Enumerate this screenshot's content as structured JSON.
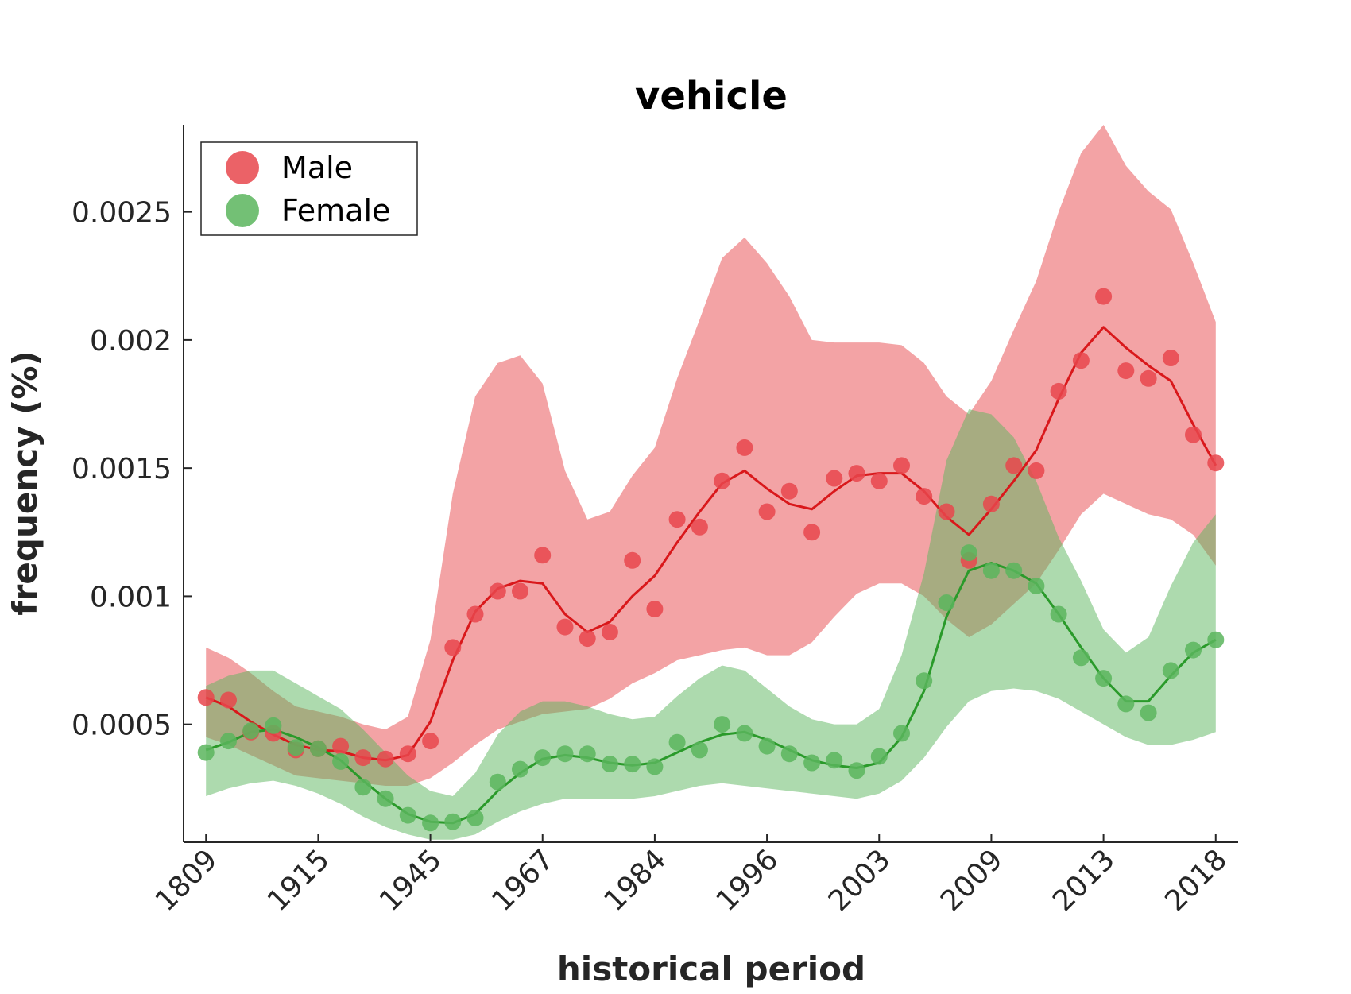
{
  "chart_data": {
    "type": "scatter",
    "title": "vehicle",
    "xlabel": "historical period",
    "ylabel": "frequency (%)",
    "x_tick_labels": [
      "1809",
      "1915",
      "1945",
      "1967",
      "1984",
      "1996",
      "2003",
      "2009",
      "2013",
      "2018"
    ],
    "y_ticks": [
      {
        "value": 0.0005,
        "label": "0.0005"
      },
      {
        "value": 0.001,
        "label": "0.001"
      },
      {
        "value": 0.0015,
        "label": "0.0015"
      },
      {
        "value": 0.002,
        "label": "0.002"
      },
      {
        "value": 0.0025,
        "label": "0.0025"
      }
    ],
    "ylim": [
      4e-05,
      0.00284
    ],
    "xlim": [
      -1,
      46
    ],
    "grid": false,
    "legend": {
      "placement": "top-left"
    },
    "series": [
      {
        "name": "Male",
        "color": "#e8474c",
        "line_color": "#d9181b",
        "points": [
          0.000605,
          0.000595,
          0.00047,
          0.000465,
          0.0004,
          0.000405,
          0.000415,
          0.00037,
          0.000365,
          0.000385,
          0.000435,
          0.0008,
          0.00093,
          0.00102,
          0.00102,
          0.00116,
          0.00088,
          0.000835,
          0.00086,
          0.00114,
          0.00095,
          0.0013,
          0.00127,
          0.00145,
          0.00158,
          0.00133,
          0.00141,
          0.00125,
          0.00146,
          0.00148,
          0.00145,
          0.00151,
          0.00139,
          0.00133,
          0.00114,
          0.00136,
          0.00151,
          0.00149,
          0.0018,
          0.00192,
          0.00217,
          0.00188,
          0.00185,
          0.00193,
          0.00163,
          0.00152
        ],
        "trend": [
          0.000605,
          0.00057,
          0.00051,
          0.00046,
          0.00042,
          0.0004,
          0.000395,
          0.00037,
          0.00036,
          0.00038,
          0.00051,
          0.00075,
          0.00094,
          0.00103,
          0.00106,
          0.00105,
          0.00093,
          0.00086,
          0.0009,
          0.001,
          0.00108,
          0.00121,
          0.00133,
          0.00144,
          0.00149,
          0.00142,
          0.00136,
          0.00134,
          0.00141,
          0.00147,
          0.00148,
          0.00148,
          0.00141,
          0.00131,
          0.00124,
          0.00134,
          0.00145,
          0.00157,
          0.00177,
          0.00195,
          0.00205,
          0.00197,
          0.0019,
          0.00184,
          0.00167,
          0.00151
        ],
        "band_upper": [
          0.0008,
          0.00076,
          0.0007,
          0.00063,
          0.00057,
          0.00055,
          0.00053,
          0.0005,
          0.00048,
          0.00053,
          0.00083,
          0.0014,
          0.00178,
          0.00191,
          0.00194,
          0.00183,
          0.00149,
          0.0013,
          0.00133,
          0.00147,
          0.00158,
          0.00185,
          0.00208,
          0.00232,
          0.0024,
          0.0023,
          0.00217,
          0.002,
          0.00199,
          0.00199,
          0.00199,
          0.00198,
          0.00191,
          0.00178,
          0.00171,
          0.00184,
          0.00204,
          0.00223,
          0.0025,
          0.00273,
          0.00284,
          0.00268,
          0.00258,
          0.00251,
          0.0023,
          0.00207
        ],
        "band_lower": [
          0.00045,
          0.00042,
          0.00038,
          0.00034,
          0.0003,
          0.00029,
          0.00028,
          0.00027,
          0.00026,
          0.00026,
          0.00029,
          0.00035,
          0.00042,
          0.00048,
          0.00051,
          0.00054,
          0.00055,
          0.00056,
          0.0006,
          0.00066,
          0.0007,
          0.00075,
          0.00077,
          0.00079,
          0.0008,
          0.00077,
          0.00077,
          0.00082,
          0.00092,
          0.00101,
          0.00105,
          0.00105,
          0.001,
          0.00091,
          0.00084,
          0.00089,
          0.00097,
          0.00105,
          0.00118,
          0.00132,
          0.0014,
          0.00136,
          0.00132,
          0.0013,
          0.00124,
          0.00112
        ]
      },
      {
        "name": "Female",
        "color": "#5bb55d",
        "line_color": "#2a9a2a",
        "points": [
          0.00039,
          0.000435,
          0.000475,
          0.000495,
          0.00041,
          0.000405,
          0.000355,
          0.000255,
          0.00021,
          0.000145,
          0.000115,
          0.00012,
          0.000135,
          0.000275,
          0.000325,
          0.00037,
          0.000385,
          0.000385,
          0.000345,
          0.000345,
          0.000335,
          0.00043,
          0.0004,
          0.0005,
          0.000465,
          0.000415,
          0.000385,
          0.00035,
          0.00036,
          0.00032,
          0.000375,
          0.000465,
          0.00067,
          0.000975,
          0.00117,
          0.0011,
          0.0011,
          0.00104,
          0.00093,
          0.00076,
          0.00068,
          0.00058,
          0.000545,
          0.00071,
          0.00079,
          0.00083
        ],
        "trend": [
          0.0004,
          0.00043,
          0.00047,
          0.00048,
          0.00045,
          0.00041,
          0.00036,
          0.00028,
          0.00021,
          0.00015,
          0.00012,
          0.000115,
          0.00015,
          0.00024,
          0.00031,
          0.000365,
          0.00038,
          0.00037,
          0.00035,
          0.00034,
          0.00035,
          0.00039,
          0.00043,
          0.00046,
          0.00047,
          0.00044,
          0.0004,
          0.00036,
          0.00034,
          0.00033,
          0.00035,
          0.00045,
          0.00063,
          0.00092,
          0.0011,
          0.00113,
          0.0011,
          0.00105,
          0.00093,
          0.0008,
          0.00068,
          0.00059,
          0.00059,
          0.00069,
          0.00078,
          0.00083
        ],
        "band_upper": [
          0.00065,
          0.00069,
          0.00071,
          0.00071,
          0.00066,
          0.00061,
          0.00056,
          0.00048,
          0.00039,
          0.0003,
          0.00024,
          0.00022,
          0.00031,
          0.00046,
          0.00055,
          0.00059,
          0.00059,
          0.00057,
          0.00054,
          0.00052,
          0.00053,
          0.00061,
          0.00068,
          0.00073,
          0.00071,
          0.00064,
          0.00057,
          0.00052,
          0.0005,
          0.0005,
          0.00056,
          0.00077,
          0.00109,
          0.00153,
          0.00173,
          0.00171,
          0.00162,
          0.00145,
          0.00123,
          0.00106,
          0.00087,
          0.00078,
          0.00084,
          0.00104,
          0.00121,
          0.00132
        ],
        "band_lower": [
          0.00022,
          0.00025,
          0.00027,
          0.00028,
          0.00026,
          0.00023,
          0.00019,
          0.00014,
          0.0001,
          7e-05,
          5e-05,
          5e-05,
          7e-05,
          0.00012,
          0.00016,
          0.00019,
          0.00021,
          0.00021,
          0.00021,
          0.00021,
          0.00022,
          0.00024,
          0.00026,
          0.00027,
          0.00026,
          0.00025,
          0.00024,
          0.00023,
          0.00022,
          0.00021,
          0.00023,
          0.00028,
          0.00037,
          0.00049,
          0.00059,
          0.00063,
          0.00064,
          0.00063,
          0.0006,
          0.00055,
          0.0005,
          0.00045,
          0.00042,
          0.00042,
          0.00044,
          0.00047
        ]
      }
    ]
  }
}
